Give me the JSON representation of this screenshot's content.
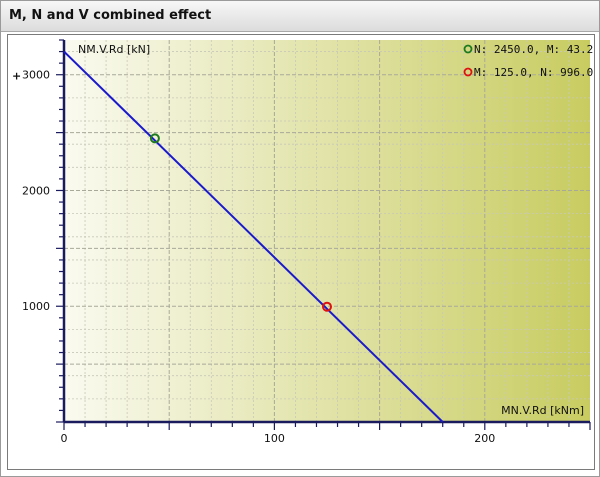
{
  "window": {
    "title": "M, N and V combined effect"
  },
  "colors": {
    "line": "#1a1acc",
    "point1": "#1e7a1e",
    "point2": "#dd1111",
    "bg_left": "#fafaf0",
    "bg_right": "#c8cc60"
  },
  "chart_data": {
    "type": "line",
    "title": "",
    "xlabel": "MN.V.Rd [kNm]",
    "ylabel": "NM.V.Rd [kN]",
    "xlim": [
      0,
      250
    ],
    "ylim": [
      0,
      3300
    ],
    "x_ticks": [
      0,
      100,
      200
    ],
    "y_ticks": [
      1000,
      2000,
      3000
    ],
    "x_tick_labels": [
      "0",
      "100",
      "200"
    ],
    "y_tick_labels": [
      "1000",
      "2000",
      "3000"
    ],
    "grid": true,
    "series": [
      {
        "x": [
          0,
          180
        ],
        "y": [
          3200,
          0
        ]
      }
    ],
    "points": [
      {
        "label": "N: 2450.0, M: 43.2",
        "x": 43.2,
        "y": 2450.0,
        "color": "green"
      },
      {
        "label": "M: 125.0, N: 996.0",
        "x": 125.0,
        "y": 996.0,
        "color": "red"
      }
    ],
    "legend_position": "top-right",
    "plus_marker": "+"
  }
}
